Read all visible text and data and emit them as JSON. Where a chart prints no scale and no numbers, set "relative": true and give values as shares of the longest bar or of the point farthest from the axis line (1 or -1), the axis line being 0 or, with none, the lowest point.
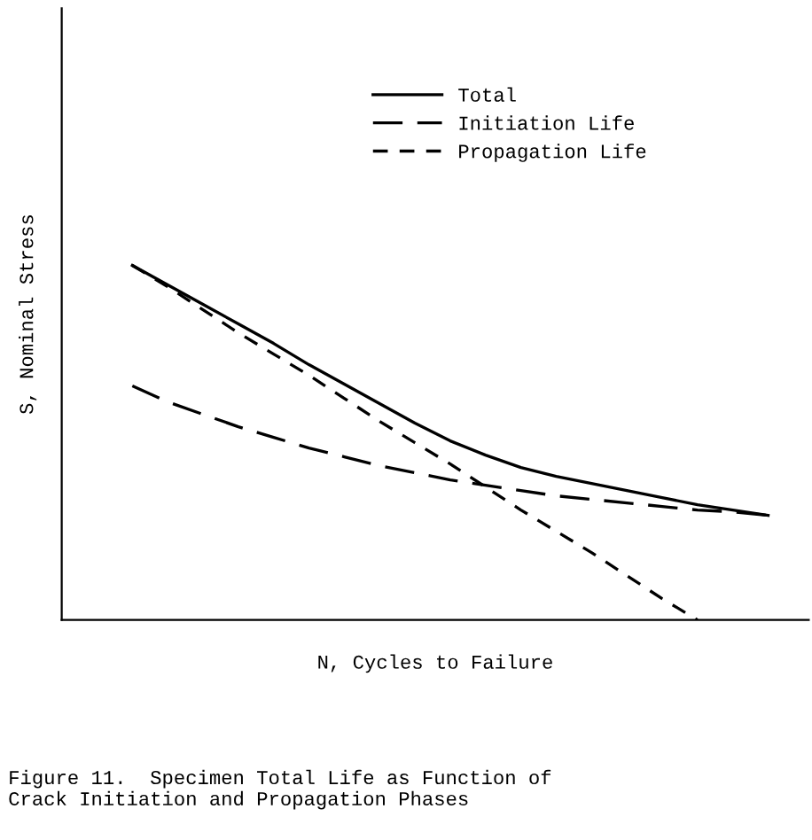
{
  "chart_data": {
    "type": "line",
    "relative": true,
    "xlabel": "N, Cycles to Failure",
    "ylabel": "S, Nominal Stress",
    "categories": [
      null,
      null,
      null,
      null,
      null,
      null,
      null,
      null,
      null,
      null,
      null,
      null,
      null,
      null,
      null,
      null,
      null,
      null,
      null
    ],
    "series": [
      {
        "name": "Total",
        "color": "#000000",
        "line_style": "solid",
        "values": [
          1.0,
          0.945,
          0.89,
          0.835,
          0.78,
          0.72,
          0.665,
          0.61,
          0.555,
          0.505,
          0.465,
          0.43,
          0.405,
          0.385,
          0.365,
          0.345,
          0.325,
          0.31,
          0.295
        ]
      },
      {
        "name": "Initiation Life",
        "color": "#000000",
        "line_style": "dashed",
        "values": [
          0.66,
          0.615,
          0.58,
          0.545,
          0.515,
          0.485,
          0.46,
          0.435,
          0.415,
          0.395,
          0.38,
          0.365,
          0.35,
          0.34,
          0.33,
          0.32,
          0.31,
          0.305,
          0.295
        ]
      },
      {
        "name": "Propagation Life",
        "color": "#000000",
        "line_style": "dashed",
        "values": [
          1.0,
          0.94,
          0.875,
          0.81,
          0.75,
          0.69,
          0.625,
          0.56,
          0.5,
          0.44,
          0.375,
          0.31,
          0.25,
          0.19,
          0.125,
          0.06,
          0.0,
          null,
          null
        ]
      }
    ],
    "legend": "top",
    "marker": "none",
    "annotations": [
      "Figure 11.  Specimen Total Life as Function of\nCrack Initiation and Propagation Phases"
    ]
  }
}
